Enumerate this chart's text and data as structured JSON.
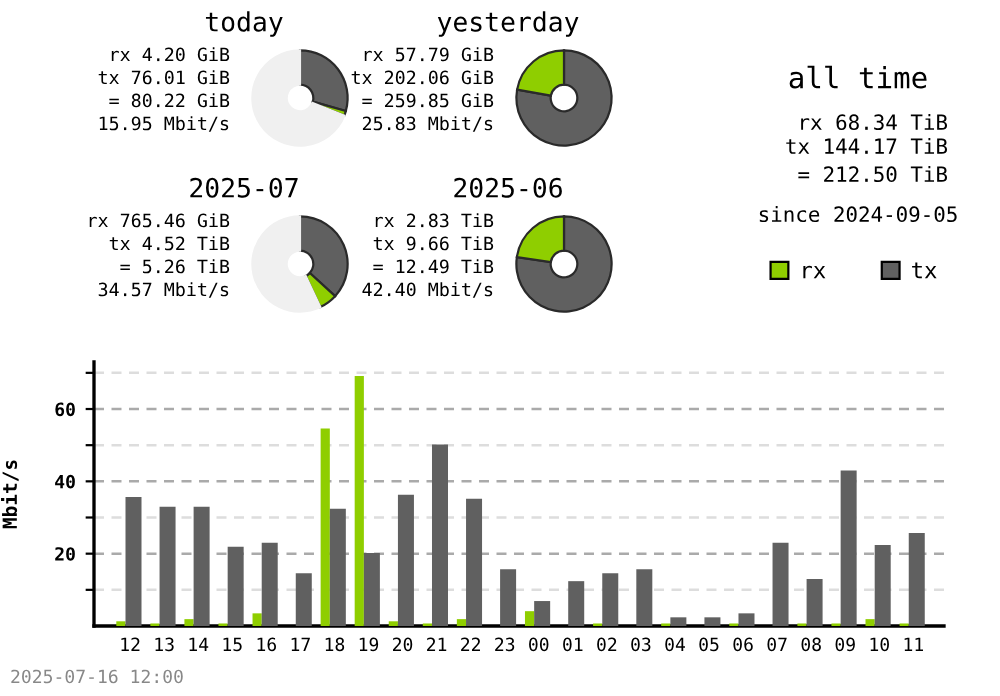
{
  "chart_data": [
    {
      "type": "donut",
      "title": "today",
      "categories": [
        null,
        null,
        null
      ],
      "values": [
        29.4,
        1.6,
        69.0
      ],
      "colors": [
        "#606060",
        "#8fce00",
        "#f0f0f0"
      ],
      "annotations": [
        "rx 4.20 GiB",
        "tx 76.01 GiB",
        "= 80.22 GiB",
        "15.95 Mbit/s"
      ]
    },
    {
      "type": "donut",
      "title": "yesterday",
      "categories": [
        null,
        null
      ],
      "values": [
        77.8,
        22.2
      ],
      "colors": [
        "#606060",
        "#8fce00"
      ],
      "annotations": [
        "rx 57.79 GiB",
        "tx 202.06 GiB",
        "= 259.85 GiB",
        "25.83 Mbit/s"
      ]
    },
    {
      "type": "other",
      "title": "all time",
      "annotations": [
        "rx 68.34 TiB",
        "tx 144.17 TiB",
        "= 212.50 TiB",
        "since 2024-09-05"
      ]
    },
    {
      "type": "donut",
      "title": "2025-07",
      "categories": [
        null,
        null,
        null
      ],
      "values": [
        36.8,
        6.2,
        57.0
      ],
      "colors": [
        "#606060",
        "#8fce00",
        "#f0f0f0"
      ],
      "annotations": [
        "rx 765.46 GiB",
        "tx 4.52 TiB",
        "= 5.26 TiB",
        "34.57 Mbit/s"
      ]
    },
    {
      "type": "donut",
      "title": "2025-06",
      "categories": [
        null,
        null
      ],
      "values": [
        77.3,
        22.7
      ],
      "colors": [
        "#606060",
        "#8fce00"
      ],
      "annotations": [
        "rx 2.83 TiB",
        "tx 9.66 TiB",
        "= 12.49 TiB",
        "42.40 Mbit/s"
      ]
    },
    {
      "type": "bar",
      "ylabel": "Mbit/s",
      "legend": "top right",
      "grid": "y",
      "categories": [
        "12",
        "13",
        "14",
        "15",
        "16",
        "17",
        "18",
        "19",
        "20",
        "21",
        "22",
        "23",
        "00",
        "01",
        "02",
        "03",
        "04",
        "05",
        "06",
        "07",
        "08",
        "09",
        "10",
        "11"
      ],
      "series": [
        {
          "name": "rx",
          "color": "#8fce00",
          "values": [
            1.3,
            0.7,
            1.9,
            0.7,
            3.5,
            0,
            54.6,
            69.1,
            1.3,
            0.7,
            1.9,
            0,
            4.1,
            0,
            0.7,
            0,
            0.7,
            0,
            0.7,
            0,
            0.7,
            0.7,
            1.9,
            0.7
          ]
        },
        {
          "name": "tx",
          "color": "#606060",
          "values": [
            35.7,
            33.0,
            33.0,
            21.9,
            23.0,
            14.6,
            32.4,
            20.2,
            36.3,
            50.2,
            35.2,
            15.7,
            6.9,
            12.4,
            14.6,
            15.7,
            2.4,
            2.4,
            3.5,
            23.0,
            13.0,
            43.0,
            22.4,
            25.7
          ]
        }
      ],
      "ylim": [
        0,
        73
      ],
      "yticks": [
        {
          "value": 10,
          "label": null
        },
        20,
        {
          "value": 30,
          "label": null
        },
        40,
        {
          "value": 50,
          "label": null
        },
        60,
        {
          "value": 70,
          "label": null
        }
      ],
      "annotations": [
        "2025-07-16 12:00"
      ]
    }
  ]
}
